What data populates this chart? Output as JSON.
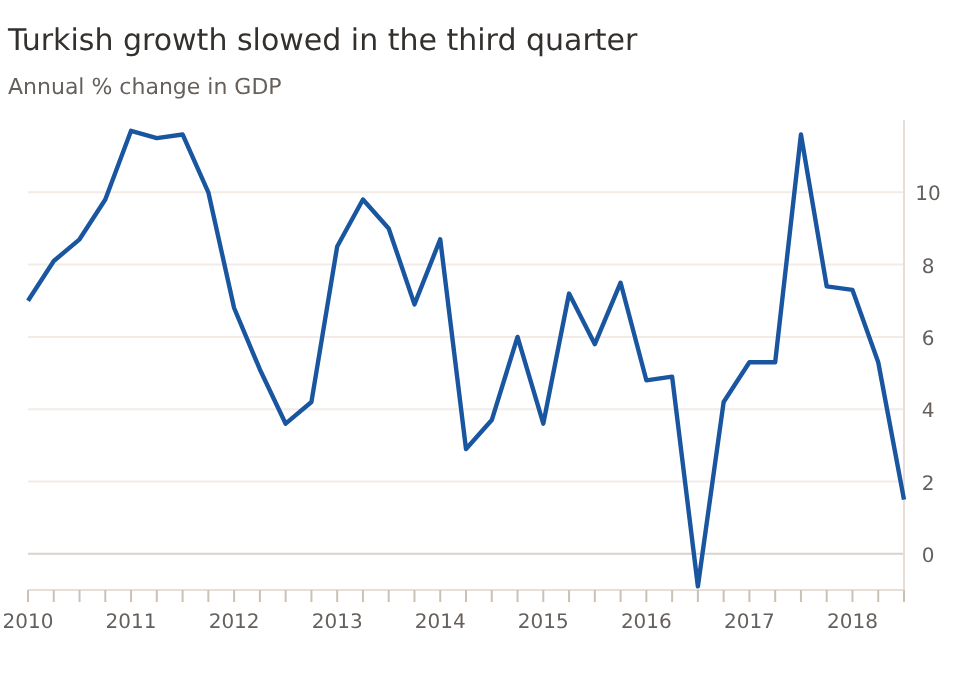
{
  "chart_data": {
    "type": "line",
    "title": "Turkish growth slowed in the third quarter",
    "subtitle": "Annual % change in GDP",
    "x": [
      2010,
      2010.25,
      2010.5,
      2010.75,
      2011,
      2011.25,
      2011.5,
      2011.75,
      2012,
      2012.25,
      2012.5,
      2012.75,
      2013,
      2013.25,
      2013.5,
      2013.75,
      2014,
      2014.25,
      2014.5,
      2014.75,
      2015,
      2015.25,
      2015.5,
      2015.75,
      2016,
      2016.25,
      2016.5,
      2016.75,
      2017,
      2017.25,
      2017.5,
      2017.75,
      2018,
      2018.25,
      2018.5
    ],
    "series": [
      {
        "color": "#1a56a0",
        "values": [
          7.0,
          8.1,
          8.7,
          9.8,
          11.7,
          11.5,
          11.6,
          10.0,
          6.8,
          5.1,
          3.6,
          4.2,
          8.5,
          9.8,
          9.0,
          6.9,
          8.7,
          2.9,
          3.7,
          6.0,
          3.6,
          7.2,
          5.8,
          7.5,
          4.8,
          4.9,
          -0.9,
          4.2,
          5.3,
          5.3,
          11.6,
          7.4,
          7.3,
          5.3,
          1.5
        ]
      }
    ],
    "xlim": [
      2010,
      2018.5
    ],
    "xticks": [
      2010,
      {
        "value": 2010.25,
        "label": null
      },
      {
        "value": 2010.5,
        "label": null
      },
      {
        "value": 2010.75,
        "label": null
      },
      2011,
      {
        "value": 2011.25,
        "label": null
      },
      {
        "value": 2011.5,
        "label": null
      },
      {
        "value": 2011.75,
        "label": null
      },
      2012,
      {
        "value": 2012.25,
        "label": null
      },
      {
        "value": 2012.5,
        "label": null
      },
      {
        "value": 2012.75,
        "label": null
      },
      2013,
      {
        "value": 2013.25,
        "label": null
      },
      {
        "value": 2013.5,
        "label": null
      },
      {
        "value": 2013.75,
        "label": null
      },
      2014,
      {
        "value": 2014.25,
        "label": null
      },
      {
        "value": 2014.5,
        "label": null
      },
      {
        "value": 2014.75,
        "label": null
      },
      2015,
      {
        "value": 2015.25,
        "label": null
      },
      {
        "value": 2015.5,
        "label": null
      },
      {
        "value": 2015.75,
        "label": null
      },
      2016,
      {
        "value": 2016.25,
        "label": null
      },
      {
        "value": 2016.5,
        "label": null
      },
      {
        "value": 2016.75,
        "label": null
      },
      2017,
      {
        "value": 2017.25,
        "label": null
      },
      {
        "value": 2017.5,
        "label": null
      },
      {
        "value": 2017.75,
        "label": null
      },
      2018,
      {
        "value": 2018.25,
        "label": null
      },
      {
        "value": 2018.5,
        "label": null
      }
    ],
    "ylim": [
      -1,
      12
    ],
    "yticks": [
      0,
      2,
      4,
      6,
      8,
      10
    ],
    "grid": "y",
    "line_style": "solid",
    "marker": "none"
  }
}
